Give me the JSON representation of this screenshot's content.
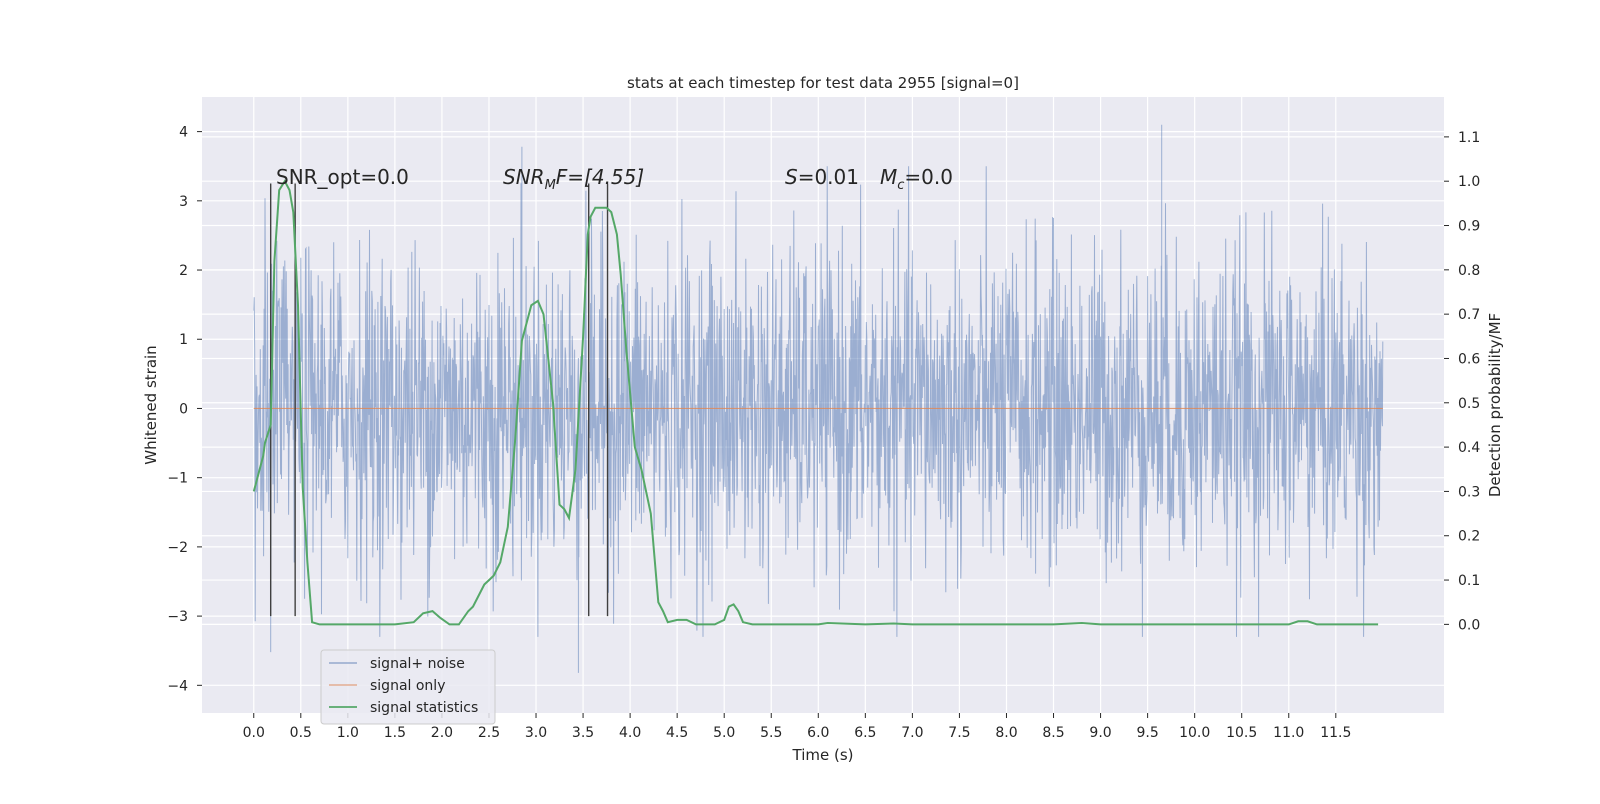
{
  "chart_data": {
    "type": "line",
    "title": "stats at each timestep for test data 2955 [signal=0]",
    "xlabel": "Time (s)",
    "ylabel_left": "Whitened strain",
    "ylabel_right": "Detection probability/MF",
    "xlim": [
      -0.55,
      12.65
    ],
    "ylim_left": [
      -4.4,
      4.5
    ],
    "ylim_right": [
      -0.2,
      1.19
    ],
    "x_ticks": [
      "0.0",
      "0.5",
      "1.0",
      "1.5",
      "2.0",
      "2.5",
      "3.0",
      "3.5",
      "4.0",
      "4.5",
      "5.0",
      "5.5",
      "6.0",
      "6.5",
      "7.0",
      "7.5",
      "8.0",
      "8.5",
      "9.0",
      "9.5",
      "10.0",
      "10.5",
      "11.0",
      "11.5"
    ],
    "y_left_ticks": [
      "4",
      "3",
      "2",
      "1",
      "0",
      "−1",
      "−2",
      "−3",
      "−4"
    ],
    "y_right_ticks": [
      "1.1",
      "1.0",
      "0.9",
      "0.8",
      "0.7",
      "0.6",
      "0.5",
      "0.4",
      "0.3",
      "0.2",
      "0.1",
      "0.0"
    ],
    "grid": true,
    "legend_position": "lower-left",
    "annotations": {
      "snr_opt": "SNR_opt=0.0",
      "snr_mf_base": "SNR",
      "snr_mf_sub": "M",
      "snr_mf_rest": "F=[4.55]",
      "s_label": "S",
      "s_value": "=0.01",
      "mc_base": "M",
      "mc_sub": "c",
      "mc_value": "=0.0"
    },
    "series": [
      {
        "name": "signal+ noise",
        "color": "#4c72b0",
        "axis": "left",
        "description_range": "dense noise between about -3.5 and 4.1",
        "x_range": [
          0.0,
          12.0
        ],
        "notable_peaks": [
          [
            2.85,
            3.78
          ],
          [
            9.65,
            4.1
          ],
          [
            0.18,
            -3.52
          ],
          [
            3.45,
            -3.82
          ]
        ]
      },
      {
        "name": "signal only",
        "color": "#dd8452",
        "axis": "left",
        "x": [
          0.0,
          12.0
        ],
        "y": [
          0.0,
          0.0
        ]
      },
      {
        "name": "signal statistics",
        "color": "#55a868",
        "axis": "right",
        "x": [
          0.0,
          0.1,
          0.12,
          0.18,
          0.22,
          0.27,
          0.33,
          0.38,
          0.42,
          0.47,
          0.52,
          0.57,
          0.62,
          0.7,
          0.9,
          1.2,
          1.5,
          1.7,
          1.8,
          1.9,
          1.98,
          2.08,
          2.18,
          2.28,
          2.33,
          2.45,
          2.5,
          2.55,
          2.62,
          2.7,
          2.78,
          2.85,
          2.95,
          3.02,
          3.08,
          3.18,
          3.25,
          3.3,
          3.35,
          3.42,
          3.5,
          3.55,
          3.58,
          3.63,
          3.7,
          3.75,
          3.8,
          3.86,
          3.9,
          3.96,
          4.05,
          4.12,
          4.22,
          4.3,
          4.35,
          4.4,
          4.5,
          4.6,
          4.7,
          4.8,
          4.9,
          5.0,
          5.05,
          5.1,
          5.15,
          5.2,
          5.3,
          5.5,
          6.0,
          6.1,
          6.5,
          6.8,
          7.0,
          7.5,
          8.0,
          8.5,
          8.8,
          9.0,
          9.5,
          10.0,
          11.0,
          11.1,
          11.2,
          11.3,
          11.5,
          11.95
        ],
        "y": [
          0.3,
          0.38,
          0.41,
          0.45,
          0.82,
          0.98,
          1.0,
          0.98,
          0.93,
          0.72,
          0.31,
          0.14,
          0.005,
          0.0,
          0.0,
          0.0,
          0.0,
          0.005,
          0.025,
          0.03,
          0.015,
          0.0,
          0.0,
          0.03,
          0.04,
          0.09,
          0.1,
          0.11,
          0.14,
          0.22,
          0.42,
          0.64,
          0.72,
          0.73,
          0.7,
          0.5,
          0.27,
          0.26,
          0.24,
          0.35,
          0.65,
          0.88,
          0.92,
          0.94,
          0.94,
          0.94,
          0.93,
          0.88,
          0.79,
          0.62,
          0.4,
          0.35,
          0.25,
          0.05,
          0.03,
          0.005,
          0.01,
          0.01,
          0.0,
          0.0,
          0.0,
          0.01,
          0.04,
          0.045,
          0.03,
          0.005,
          0.0,
          0.0,
          0.0,
          0.003,
          0.0,
          0.002,
          0.0,
          0.0,
          0.0,
          0.0,
          0.003,
          0.0,
          0.0,
          0.0,
          0.0,
          0.007,
          0.007,
          0.0,
          0.0,
          0.0
        ]
      }
    ],
    "vertical_markers": {
      "color": "#404040",
      "x": [
        0.18,
        0.44,
        3.56,
        3.76
      ],
      "y_range_left": [
        -3.0,
        3.25
      ]
    }
  }
}
